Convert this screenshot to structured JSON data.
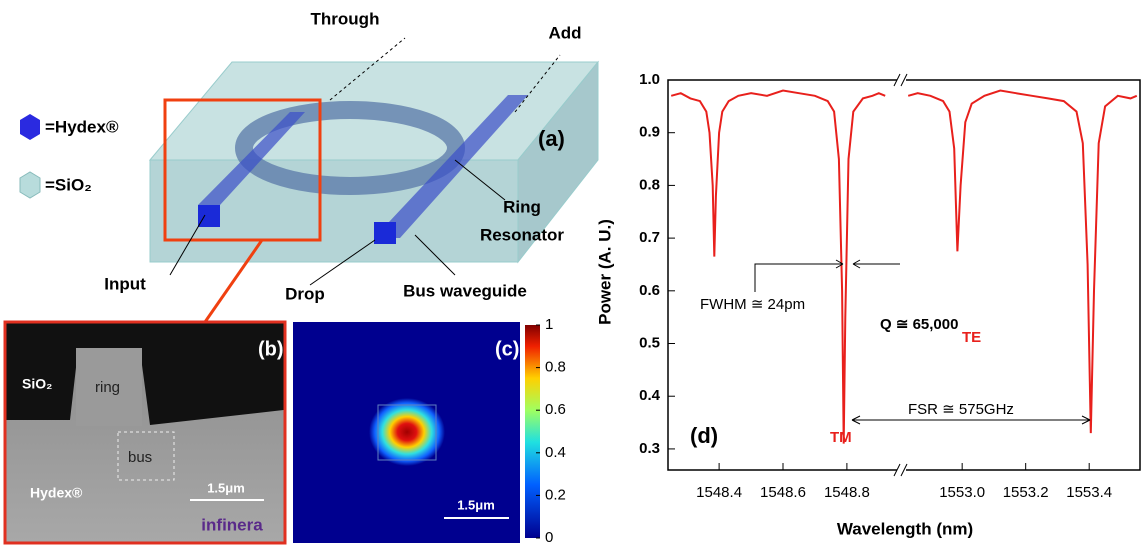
{
  "panel_a": {
    "through": "Through",
    "add": "Add",
    "hydex_legend": "=Hydex®",
    "sio2_legend": "=SiO₂",
    "label": "(a)",
    "ring_resonator": [
      "Ring",
      "Resonator"
    ],
    "input": "Input",
    "drop": "Drop",
    "bus_waveguide": "Bus waveguide"
  },
  "panel_b": {
    "label": "(b)",
    "sio2": "SiO₂",
    "ring": "ring",
    "bus": "bus",
    "hydex": "Hydex®",
    "scale": "1.5μm",
    "logo": "infinera"
  },
  "panel_c": {
    "label": "(c)",
    "scale": "1.5μm",
    "colorbar_ticks": [
      0,
      0.2,
      0.4,
      0.6,
      0.8,
      1
    ]
  },
  "chart_data": {
    "type": "line",
    "label": "(d)",
    "x_label": "Wavelength (nm)",
    "y_label": "Power (A. U.)",
    "x_segments": [
      {
        "xlim": [
          1548.24,
          1548.96
        ],
        "xticks": [
          1548.4,
          1548.6,
          1548.8
        ]
      },
      {
        "xlim": [
          1552.82,
          1553.56
        ],
        "xticks": [
          {
            "value": 1553,
            "label": "1553.0"
          },
          1553.2,
          1553.4
        ]
      }
    ],
    "ylim": [
      0.26,
      1
    ],
    "yticks": [
      0.3,
      0.4,
      0.5,
      0.6,
      0.7,
      0.8,
      0.9,
      {
        "value": 1,
        "label": "1.0"
      }
    ],
    "series": [
      {
        "color": "#e8201c",
        "x": [
          1548.25,
          1548.28,
          1548.31,
          1548.34,
          1548.36,
          1548.37,
          1548.38,
          1548.385,
          1548.39,
          1548.4,
          1548.41,
          1548.43,
          1548.46,
          1548.5,
          1548.55,
          1548.6,
          1548.65,
          1548.7,
          1548.74,
          1548.76,
          1548.775,
          1548.785,
          1548.79,
          1548.795,
          1548.805,
          1548.82,
          1548.85,
          1548.88,
          1548.9,
          1548.92,
          null,
          1552.83,
          1552.86,
          1552.9,
          1552.94,
          1552.96,
          1552.975,
          1552.985,
          1552.995,
          1553.01,
          1553.03,
          1553.07,
          1553.12,
          1553.17,
          1553.22,
          1553.27,
          1553.32,
          1553.36,
          1553.38,
          1553.395,
          1553.405,
          1553.415,
          1553.43,
          1553.45,
          1553.49,
          1553.53,
          1553.55
        ],
        "values": [
          0.97,
          0.975,
          0.965,
          0.96,
          0.94,
          0.9,
          0.8,
          0.665,
          0.78,
          0.9,
          0.94,
          0.96,
          0.97,
          0.975,
          0.97,
          0.98,
          0.975,
          0.97,
          0.96,
          0.94,
          0.85,
          0.6,
          0.31,
          0.55,
          0.85,
          0.94,
          0.965,
          0.97,
          0.975,
          0.97,
          null,
          0.97,
          0.975,
          0.97,
          0.96,
          0.94,
          0.87,
          0.675,
          0.8,
          0.92,
          0.955,
          0.97,
          0.98,
          0.975,
          0.97,
          0.965,
          0.96,
          0.94,
          0.88,
          0.65,
          0.33,
          0.6,
          0.88,
          0.95,
          0.97,
          0.965,
          0.97
        ]
      }
    ],
    "annotations": [
      "TM",
      "TE",
      "FWHM ≅ 24pm",
      "Q ≅ 65,000",
      "FSR ≅ 575GHz"
    ]
  }
}
